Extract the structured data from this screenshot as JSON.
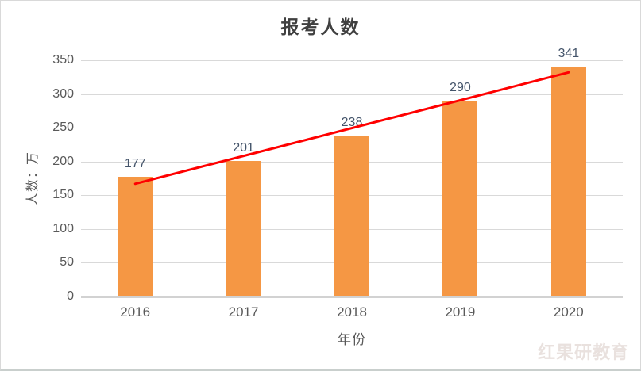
{
  "chart_data": {
    "type": "bar",
    "title": "报考人数",
    "xlabel": "年份",
    "ylabel": "人数：万",
    "categories": [
      "2016",
      "2017",
      "2018",
      "2019",
      "2020"
    ],
    "values": [
      177,
      201,
      238,
      290,
      341
    ],
    "ylim": [
      0,
      350
    ],
    "yticks": [
      0,
      50,
      100,
      150,
      200,
      250,
      300,
      350
    ],
    "grid": true,
    "legend": "none",
    "bar_color": "#f59744",
    "data_label_color": "#44546a",
    "axis_text_color": "#595959",
    "gridline_color": "#d9d9d9",
    "trendline": {
      "type": "linear",
      "color": "#ff0000",
      "width": 3,
      "value_at_first_category": 167,
      "value_at_last_category": 332
    }
  },
  "watermark": {
    "text": "红果研教育",
    "color": "#e9e1de"
  }
}
